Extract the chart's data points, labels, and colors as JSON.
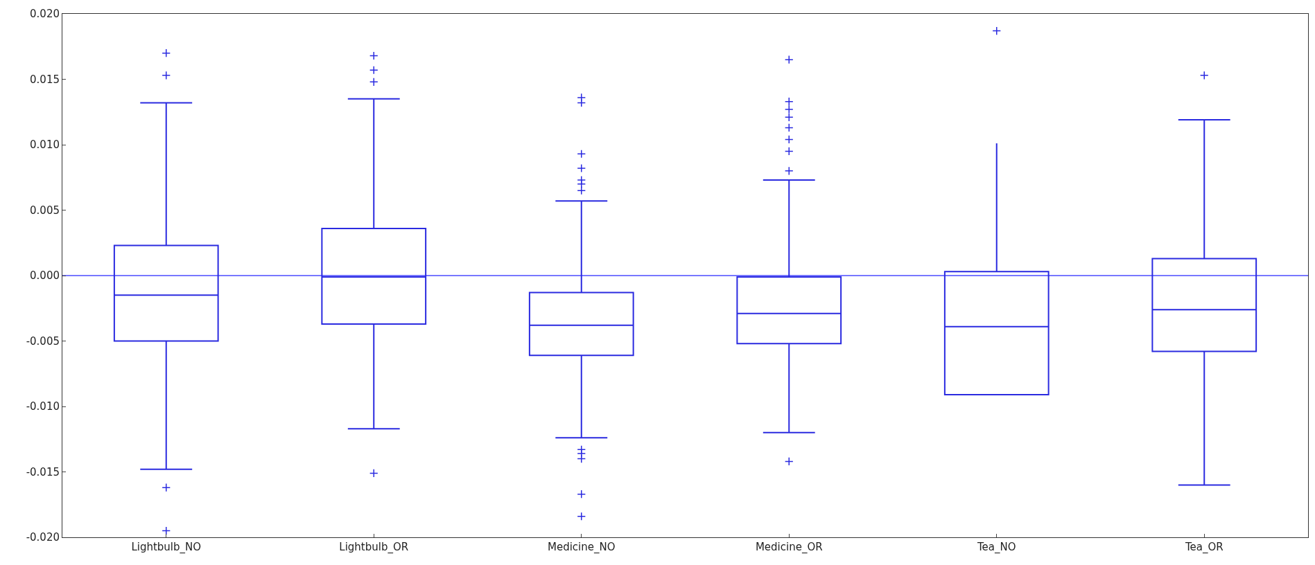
{
  "chart_data": {
    "type": "box",
    "categories": [
      "Lightbulb_NO",
      "Lightbulb_OR",
      "Medicine_NO",
      "Medicine_OR",
      "Tea_NO",
      "Tea_OR"
    ],
    "series": [
      {
        "color": "#2a2ae0",
        "boxes": [
          {
            "low": -0.0148,
            "q1": -0.005,
            "median": -0.0015,
            "q3": 0.0023,
            "high": 0.0132,
            "outliers": [
              0.017,
              0.0153,
              -0.0162,
              -0.0195
            ]
          },
          {
            "low": -0.0117,
            "q1": -0.0037,
            "median": -0.0001,
            "q3": 0.0036,
            "high": 0.0135,
            "outliers": [
              0.0168,
              0.0157,
              0.0148,
              -0.0151
            ]
          },
          {
            "low": -0.0124,
            "q1": -0.0061,
            "median": -0.0038,
            "q3": -0.0013,
            "high": 0.0057,
            "outliers": [
              0.0136,
              0.0132,
              0.0093,
              0.0082,
              0.0073,
              0.007,
              0.0065,
              -0.0133,
              -0.0136,
              -0.014,
              -0.0167,
              -0.0184
            ]
          },
          {
            "low": -0.012,
            "q1": -0.0052,
            "median": -0.0029,
            "q3": -0.0001,
            "high": 0.0073,
            "outliers": [
              0.0165,
              0.0133,
              0.0127,
              0.0121,
              0.0113,
              0.0104,
              0.0095,
              0.008,
              -0.0142
            ]
          },
          {
            "low": null,
            "q1": -0.0091,
            "median": -0.0039,
            "q3": 0.0003,
            "high": 0.0101,
            "outliers": [
              0.0187
            ]
          },
          {
            "low": -0.016,
            "q1": -0.0058,
            "median": -0.0026,
            "q3": 0.0013,
            "high": 0.0119,
            "outliers": [
              0.0153
            ]
          }
        ]
      }
    ],
    "ylim": [
      -0.02,
      0.02
    ],
    "yticks": [
      {
        "value": -0.02,
        "label": "-0.020"
      },
      {
        "value": -0.015,
        "label": "-0.015"
      },
      {
        "value": -0.01,
        "label": "-0.010"
      },
      {
        "value": -0.005,
        "label": "-0.005"
      },
      {
        "value": 0,
        "label": "0.000"
      },
      {
        "value": 0.005,
        "label": "0.005"
      },
      {
        "value": 0.01,
        "label": "0.010"
      },
      {
        "value": 0.015,
        "label": "0.015"
      },
      {
        "value": 0.02,
        "label": "0.020"
      }
    ],
    "ref_lines": [
      {
        "axis": "y",
        "value": 0,
        "color": "#4a4aff"
      }
    ],
    "grid": false,
    "marker": "cross"
  }
}
